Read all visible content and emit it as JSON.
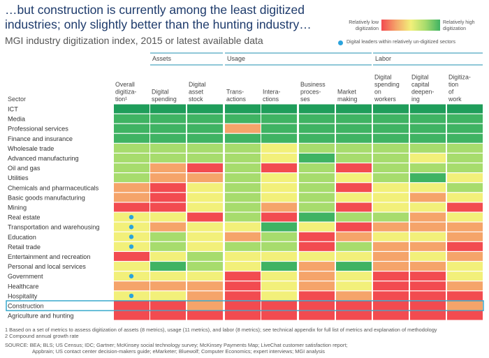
{
  "title": "…but construction is currently among the least digitized industries; only slightly better than the hunting industry…",
  "subtitle": "MGI industry digitization index, 2015 or latest available data",
  "legend": {
    "low_label": "Relatively low digitization",
    "high_label": "Relatively high digitization",
    "dot_label": "Digital leaders within relatively un-digitized sectors",
    "colors": {
      "1": "#f24b50",
      "2": "#f5a46a",
      "3": "#f2f07a",
      "4": "#a7dc6d",
      "5": "#3fb363",
      "6": "#1f9d5a"
    },
    "dot_color": "#2ba3dc"
  },
  "chart_data": {
    "type": "heatmap",
    "row_header": "Sector",
    "groups": [
      {
        "name": "",
        "columns": [
          0
        ]
      },
      {
        "name": "Assets",
        "columns": [
          1,
          2
        ]
      },
      {
        "name": "Usage",
        "columns": [
          3,
          4,
          5,
          6
        ]
      },
      {
        "name": "Labor",
        "columns": [
          7,
          8,
          9
        ]
      }
    ],
    "columns": [
      "Overall digitiza-tion¹",
      "Digital spending",
      "Digital asset stock",
      "Trans-actions",
      "Intera-ctions",
      "Business proces-ses",
      "Market making",
      "Digital spending on workers",
      "Digital capital deepen-ing",
      "Digitiza-tion of work"
    ],
    "value_scale": "1 = relatively low digitization, 6 = relatively high digitization",
    "rows": [
      {
        "sector": "ICT",
        "values": [
          6,
          6,
          6,
          6,
          6,
          6,
          6,
          6,
          6,
          6
        ],
        "leader": false
      },
      {
        "sector": "Media",
        "values": [
          5,
          5,
          5,
          5,
          5,
          5,
          5,
          5,
          5,
          5
        ],
        "leader": false
      },
      {
        "sector": "Professional services",
        "values": [
          5,
          5,
          5,
          2,
          5,
          5,
          5,
          5,
          5,
          5
        ],
        "leader": false
      },
      {
        "sector": "Finance and insurance",
        "values": [
          5,
          5,
          5,
          5,
          5,
          5,
          5,
          5,
          5,
          5
        ],
        "leader": false
      },
      {
        "sector": "Wholesale trade",
        "values": [
          4,
          4,
          4,
          4,
          3,
          4,
          4,
          4,
          4,
          4
        ],
        "leader": false
      },
      {
        "sector": "Advanced manufacturing",
        "values": [
          4,
          4,
          4,
          4,
          3,
          5,
          4,
          4,
          3,
          4
        ],
        "leader": false
      },
      {
        "sector": "Oil and gas",
        "values": [
          4,
          2,
          1,
          4,
          1,
          4,
          1,
          4,
          4,
          4
        ],
        "leader": false
      },
      {
        "sector": "Utilities",
        "values": [
          4,
          2,
          2,
          4,
          3,
          4,
          3,
          4,
          5,
          3
        ],
        "leader": false
      },
      {
        "sector": "Chemicals and pharmaceuticals",
        "values": [
          2,
          1,
          3,
          4,
          3,
          4,
          1,
          3,
          3,
          4
        ],
        "leader": false
      },
      {
        "sector": "Basic goods manufacturing",
        "values": [
          2,
          1,
          3,
          4,
          3,
          4,
          3,
          3,
          2,
          3
        ],
        "leader": false
      },
      {
        "sector": "Mining",
        "values": [
          1,
          1,
          3,
          4,
          2,
          4,
          1,
          3,
          3,
          1
        ],
        "leader": false
      },
      {
        "sector": "Real estate",
        "values": [
          3,
          3,
          1,
          4,
          1,
          5,
          4,
          4,
          2,
          3
        ],
        "leader": true
      },
      {
        "sector": "Transportation and warehousing",
        "values": [
          3,
          2,
          3,
          3,
          5,
          3,
          1,
          2,
          2,
          2
        ],
        "leader": true
      },
      {
        "sector": "Education",
        "values": [
          3,
          4,
          3,
          2,
          4,
          1,
          2,
          3,
          3,
          2
        ],
        "leader": true
      },
      {
        "sector": "Retail trade",
        "values": [
          3,
          4,
          3,
          4,
          4,
          1,
          4,
          2,
          2,
          1
        ],
        "leader": true
      },
      {
        "sector": "Entertainment and recreation",
        "values": [
          1,
          3,
          4,
          3,
          3,
          3,
          3,
          2,
          3,
          2
        ],
        "leader": false
      },
      {
        "sector": "Personal and local services",
        "values": [
          3,
          5,
          4,
          3,
          5,
          2,
          5,
          2,
          2,
          3
        ],
        "leader": false
      },
      {
        "sector": "Government",
        "values": [
          3,
          3,
          3,
          1,
          3,
          2,
          3,
          1,
          1,
          3
        ],
        "leader": true
      },
      {
        "sector": "Healthcare",
        "values": [
          2,
          2,
          2,
          1,
          3,
          2,
          3,
          1,
          1,
          2
        ],
        "leader": false
      },
      {
        "sector": "Hospitality",
        "values": [
          3,
          3,
          2,
          1,
          3,
          1,
          2,
          1,
          1,
          1
        ],
        "leader": true
      },
      {
        "sector": "Construction",
        "values": [
          1,
          1,
          2,
          1,
          1,
          1,
          1,
          1,
          1,
          2
        ],
        "leader": false,
        "highlighted": true
      },
      {
        "sector": "Agriculture and hunting",
        "values": [
          1,
          1,
          1,
          1,
          1,
          1,
          1,
          1,
          1,
          1
        ],
        "leader": false
      }
    ]
  },
  "footnotes": {
    "note1": "1 Based on a set of metrics to assess digitization of assets (8 metrics), usage (11 metrics), and labor (8 metrics); see technical appendix for full list of metrics and explanation of methodology",
    "note2": "2 Compound annual growth rate",
    "source1": "SOURCE: BEA; BLS; US Census; IDC; Gartner; McKinsey social technology survey; McKinsey Payments Map; LiveChat customer satisfaction report;",
    "source2": "Appbrain; US contact center decision-makers guide; eMarketer; Bluewolf; Computer Economics; expert interviews; MGI analysis"
  }
}
